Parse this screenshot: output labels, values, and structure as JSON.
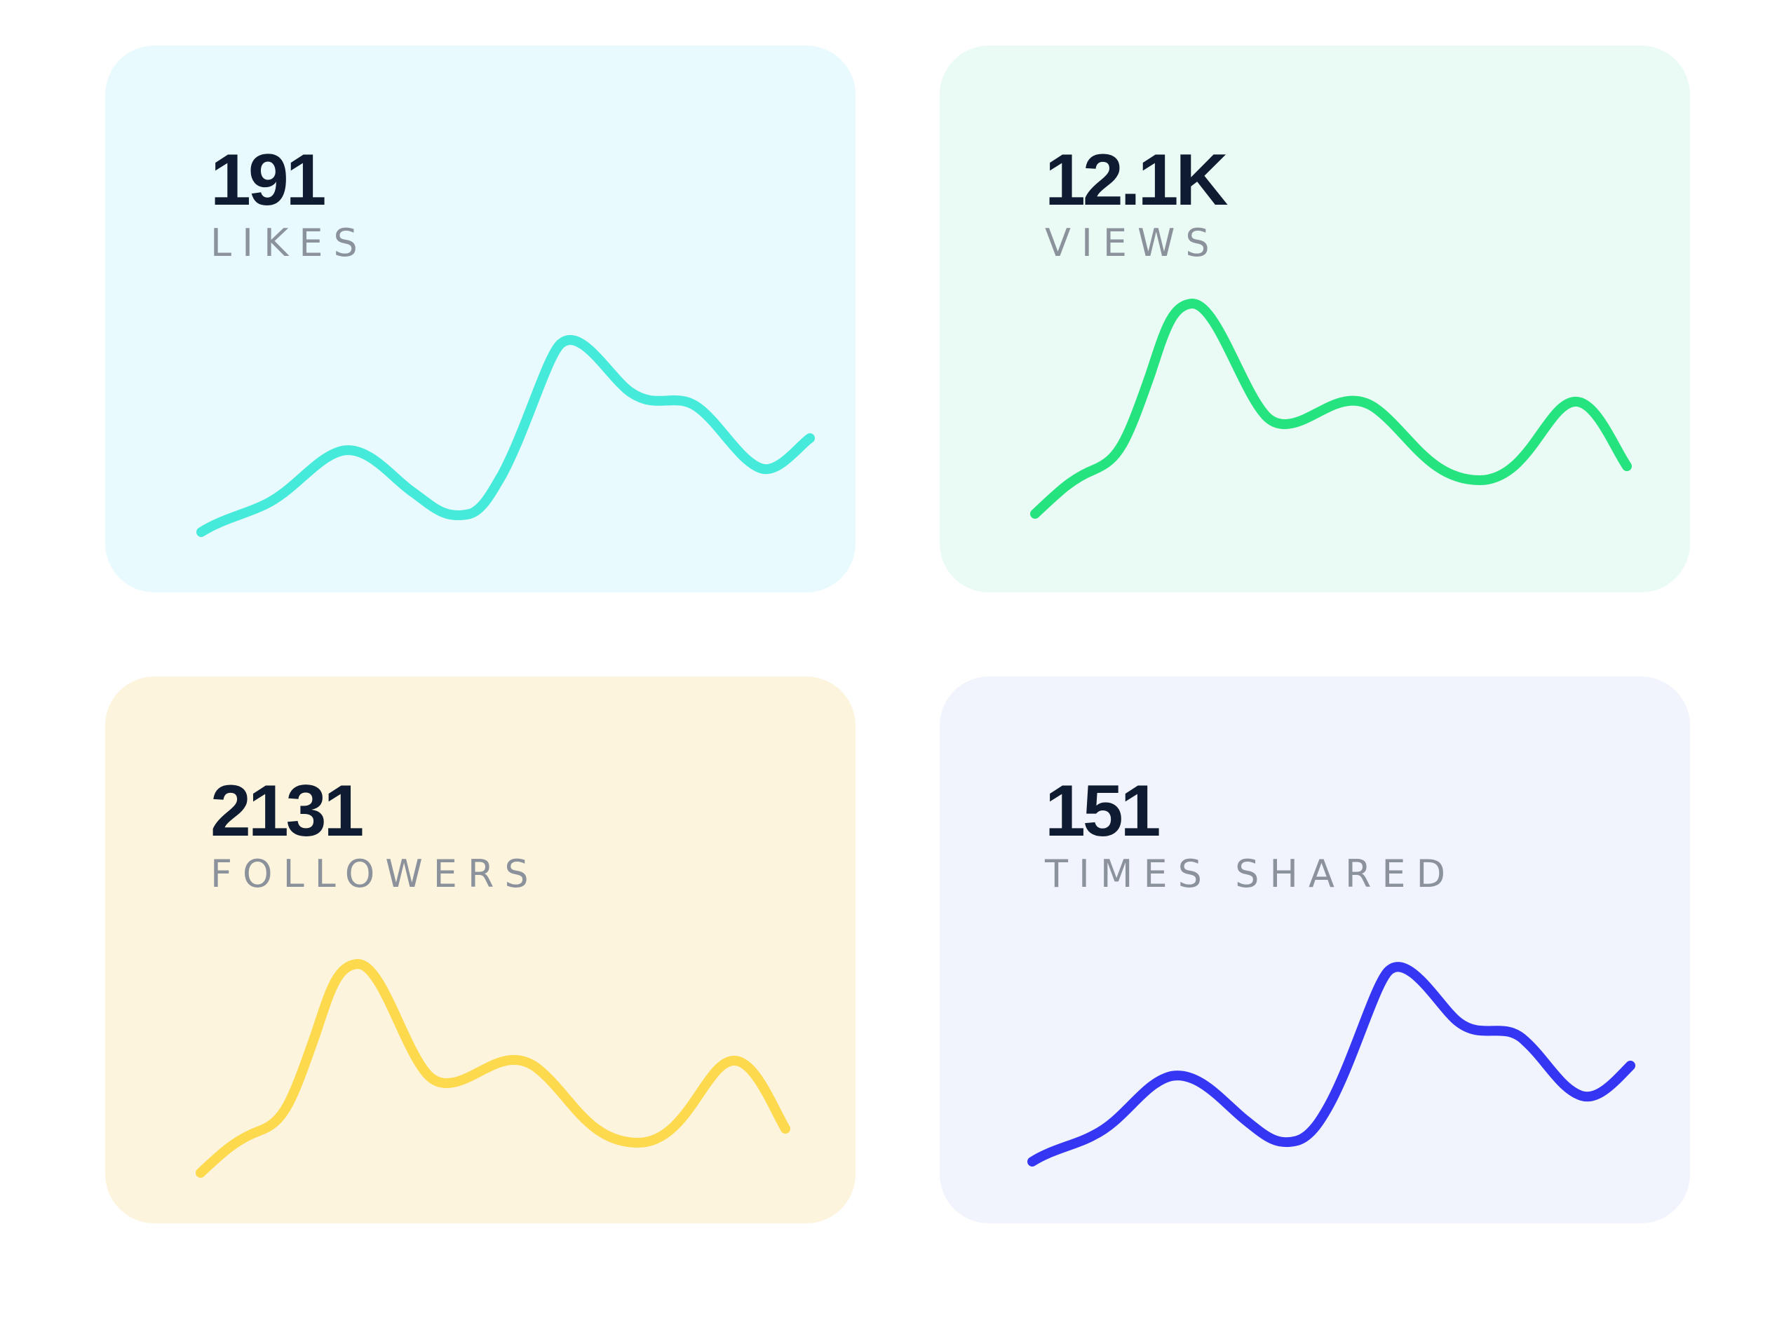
{
  "colors": {
    "likes_bg": "#e8fafd",
    "likes_line": "#45eadb",
    "views_bg": "#eafaf4",
    "views_line": "#25e37f",
    "followers_bg": "#fdf4dd",
    "followers_line": "#fdd94e",
    "shared_bg": "#f2f4fd",
    "shared_line": "#3536f3",
    "value_text": "#0f1b30",
    "label_text": "#8b929c"
  },
  "cards": {
    "likes": {
      "value": "191",
      "label": "LIKES"
    },
    "views": {
      "value": "12.1K",
      "label": "VIEWS"
    },
    "followers": {
      "value": "2131",
      "label": "FOLLOWERS"
    },
    "shared": {
      "value": "151",
      "label": "TIMES SHARED"
    }
  }
}
